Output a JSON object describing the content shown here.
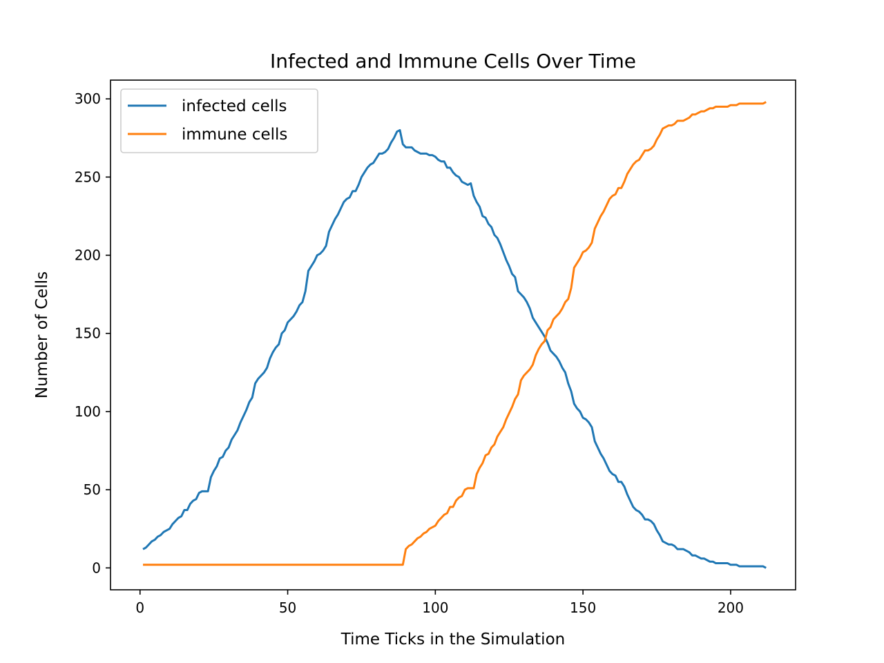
{
  "chart_data": {
    "type": "line",
    "title": "Infected and Immune Cells Over Time",
    "xlabel": "Time Ticks in the Simulation",
    "ylabel": "Number of Cells",
    "xlim": [
      -10,
      222
    ],
    "ylim": [
      -14,
      312
    ],
    "xticks": [
      0,
      50,
      100,
      150,
      200
    ],
    "yticks": [
      0,
      50,
      100,
      150,
      200,
      250,
      300
    ],
    "grid": false,
    "legend_position": "top-left",
    "series": [
      {
        "name": "infected cells",
        "color": "#1f77b4",
        "points": [
          [
            1,
            12
          ],
          [
            2,
            13
          ],
          [
            3,
            15
          ],
          [
            4,
            17
          ],
          [
            5,
            18
          ],
          [
            6,
            20
          ],
          [
            7,
            21
          ],
          [
            8,
            23
          ],
          [
            9,
            24
          ],
          [
            10,
            25
          ],
          [
            11,
            28
          ],
          [
            12,
            30
          ],
          [
            13,
            32
          ],
          [
            14,
            33
          ],
          [
            15,
            37
          ],
          [
            16,
            37
          ],
          [
            17,
            41
          ],
          [
            18,
            43
          ],
          [
            19,
            44
          ],
          [
            20,
            48
          ],
          [
            21,
            49
          ],
          [
            22,
            49
          ],
          [
            23,
            49
          ],
          [
            24,
            58
          ],
          [
            25,
            62
          ],
          [
            26,
            65
          ],
          [
            27,
            70
          ],
          [
            28,
            71
          ],
          [
            29,
            75
          ],
          [
            30,
            77
          ],
          [
            31,
            82
          ],
          [
            32,
            85
          ],
          [
            33,
            88
          ],
          [
            34,
            93
          ],
          [
            35,
            97
          ],
          [
            36,
            101
          ],
          [
            37,
            106
          ],
          [
            38,
            109
          ],
          [
            39,
            118
          ],
          [
            40,
            121
          ],
          [
            41,
            123
          ],
          [
            42,
            125
          ],
          [
            43,
            128
          ],
          [
            44,
            134
          ],
          [
            45,
            138
          ],
          [
            46,
            141
          ],
          [
            47,
            143
          ],
          [
            48,
            150
          ],
          [
            49,
            152
          ],
          [
            50,
            157
          ],
          [
            51,
            159
          ],
          [
            52,
            161
          ],
          [
            53,
            164
          ],
          [
            54,
            168
          ],
          [
            55,
            170
          ],
          [
            56,
            177
          ],
          [
            57,
            190
          ],
          [
            58,
            193
          ],
          [
            59,
            196
          ],
          [
            60,
            200
          ],
          [
            61,
            201
          ],
          [
            62,
            203
          ],
          [
            63,
            206
          ],
          [
            64,
            215
          ],
          [
            65,
            219
          ],
          [
            66,
            223
          ],
          [
            67,
            226
          ],
          [
            68,
            230
          ],
          [
            69,
            234
          ],
          [
            70,
            236
          ],
          [
            71,
            237
          ],
          [
            72,
            241
          ],
          [
            73,
            241
          ],
          [
            74,
            245
          ],
          [
            75,
            250
          ],
          [
            76,
            253
          ],
          [
            77,
            256
          ],
          [
            78,
            258
          ],
          [
            79,
            259
          ],
          [
            80,
            262
          ],
          [
            81,
            265
          ],
          [
            82,
            265
          ],
          [
            83,
            266
          ],
          [
            84,
            268
          ],
          [
            85,
            272
          ],
          [
            86,
            275
          ],
          [
            87,
            279
          ],
          [
            88,
            280
          ],
          [
            89,
            271
          ],
          [
            90,
            269
          ],
          [
            91,
            269
          ],
          [
            92,
            269
          ],
          [
            93,
            267
          ],
          [
            94,
            266
          ],
          [
            95,
            265
          ],
          [
            96,
            265
          ],
          [
            97,
            265
          ],
          [
            98,
            264
          ],
          [
            99,
            264
          ],
          [
            100,
            263
          ],
          [
            101,
            261
          ],
          [
            102,
            260
          ],
          [
            103,
            260
          ],
          [
            104,
            256
          ],
          [
            105,
            256
          ],
          [
            106,
            253
          ],
          [
            107,
            251
          ],
          [
            108,
            250
          ],
          [
            109,
            247
          ],
          [
            110,
            246
          ],
          [
            111,
            245
          ],
          [
            112,
            246
          ],
          [
            113,
            238
          ],
          [
            114,
            234
          ],
          [
            115,
            231
          ],
          [
            116,
            225
          ],
          [
            117,
            224
          ],
          [
            118,
            220
          ],
          [
            119,
            218
          ],
          [
            120,
            213
          ],
          [
            121,
            211
          ],
          [
            122,
            207
          ],
          [
            123,
            202
          ],
          [
            124,
            197
          ],
          [
            125,
            193
          ],
          [
            126,
            188
          ],
          [
            127,
            186
          ],
          [
            128,
            177
          ],
          [
            129,
            175
          ],
          [
            130,
            173
          ],
          [
            131,
            170
          ],
          [
            132,
            166
          ],
          [
            133,
            160
          ],
          [
            134,
            157
          ],
          [
            135,
            154
          ],
          [
            136,
            151
          ],
          [
            137,
            148
          ],
          [
            138,
            144
          ],
          [
            139,
            139
          ],
          [
            140,
            137
          ],
          [
            141,
            135
          ],
          [
            142,
            132
          ],
          [
            143,
            128
          ],
          [
            144,
            125
          ],
          [
            145,
            118
          ],
          [
            146,
            113
          ],
          [
            147,
            105
          ],
          [
            148,
            102
          ],
          [
            149,
            100
          ],
          [
            150,
            96
          ],
          [
            151,
            95
          ],
          [
            152,
            93
          ],
          [
            153,
            90
          ],
          [
            154,
            81
          ],
          [
            155,
            77
          ],
          [
            156,
            73
          ],
          [
            157,
            70
          ],
          [
            158,
            66
          ],
          [
            159,
            62
          ],
          [
            160,
            60
          ],
          [
            161,
            59
          ],
          [
            162,
            55
          ],
          [
            163,
            55
          ],
          [
            164,
            52
          ],
          [
            165,
            47
          ],
          [
            166,
            43
          ],
          [
            167,
            39
          ],
          [
            168,
            37
          ],
          [
            169,
            36
          ],
          [
            170,
            34
          ],
          [
            171,
            31
          ],
          [
            172,
            31
          ],
          [
            173,
            30
          ],
          [
            174,
            28
          ],
          [
            175,
            24
          ],
          [
            176,
            21
          ],
          [
            177,
            17
          ],
          [
            178,
            16
          ],
          [
            179,
            15
          ],
          [
            180,
            15
          ],
          [
            181,
            14
          ],
          [
            182,
            12
          ],
          [
            183,
            12
          ],
          [
            184,
            12
          ],
          [
            185,
            11
          ],
          [
            186,
            10
          ],
          [
            187,
            8
          ],
          [
            188,
            8
          ],
          [
            189,
            7
          ],
          [
            190,
            6
          ],
          [
            191,
            6
          ],
          [
            192,
            5
          ],
          [
            193,
            4
          ],
          [
            194,
            4
          ],
          [
            195,
            3
          ],
          [
            196,
            3
          ],
          [
            197,
            3
          ],
          [
            198,
            3
          ],
          [
            199,
            3
          ],
          [
            200,
            2
          ],
          [
            201,
            2
          ],
          [
            202,
            2
          ],
          [
            203,
            1
          ],
          [
            204,
            1
          ],
          [
            205,
            1
          ],
          [
            206,
            1
          ],
          [
            207,
            1
          ],
          [
            208,
            1
          ],
          [
            209,
            1
          ],
          [
            210,
            1
          ],
          [
            211,
            1
          ],
          [
            212,
            0
          ]
        ]
      },
      {
        "name": "immune cells",
        "color": "#ff7f0e",
        "points": [
          [
            1,
            2
          ],
          [
            89,
            2
          ],
          [
            90,
            12
          ],
          [
            91,
            14
          ],
          [
            92,
            15
          ],
          [
            93,
            17
          ],
          [
            94,
            19
          ],
          [
            95,
            20
          ],
          [
            96,
            22
          ],
          [
            97,
            23
          ],
          [
            98,
            25
          ],
          [
            99,
            26
          ],
          [
            100,
            27
          ],
          [
            101,
            30
          ],
          [
            102,
            32
          ],
          [
            103,
            34
          ],
          [
            104,
            35
          ],
          [
            105,
            39
          ],
          [
            106,
            39
          ],
          [
            107,
            43
          ],
          [
            108,
            45
          ],
          [
            109,
            46
          ],
          [
            110,
            50
          ],
          [
            111,
            51
          ],
          [
            112,
            51
          ],
          [
            113,
            51
          ],
          [
            114,
            60
          ],
          [
            115,
            64
          ],
          [
            116,
            67
          ],
          [
            117,
            72
          ],
          [
            118,
            73
          ],
          [
            119,
            77
          ],
          [
            120,
            79
          ],
          [
            121,
            84
          ],
          [
            122,
            87
          ],
          [
            123,
            90
          ],
          [
            124,
            95
          ],
          [
            125,
            99
          ],
          [
            126,
            103
          ],
          [
            127,
            108
          ],
          [
            128,
            111
          ],
          [
            129,
            120
          ],
          [
            130,
            123
          ],
          [
            131,
            125
          ],
          [
            132,
            127
          ],
          [
            133,
            130
          ],
          [
            134,
            136
          ],
          [
            135,
            140
          ],
          [
            136,
            143
          ],
          [
            137,
            145
          ],
          [
            138,
            152
          ],
          [
            139,
            154
          ],
          [
            140,
            159
          ],
          [
            141,
            161
          ],
          [
            142,
            163
          ],
          [
            143,
            166
          ],
          [
            144,
            170
          ],
          [
            145,
            172
          ],
          [
            146,
            179
          ],
          [
            147,
            192
          ],
          [
            148,
            195
          ],
          [
            149,
            198
          ],
          [
            150,
            202
          ],
          [
            151,
            203
          ],
          [
            152,
            205
          ],
          [
            153,
            208
          ],
          [
            154,
            217
          ],
          [
            155,
            221
          ],
          [
            156,
            225
          ],
          [
            157,
            228
          ],
          [
            158,
            232
          ],
          [
            159,
            236
          ],
          [
            160,
            238
          ],
          [
            161,
            239
          ],
          [
            162,
            243
          ],
          [
            163,
            243
          ],
          [
            164,
            247
          ],
          [
            165,
            252
          ],
          [
            166,
            255
          ],
          [
            167,
            258
          ],
          [
            168,
            260
          ],
          [
            169,
            261
          ],
          [
            170,
            264
          ],
          [
            171,
            267
          ],
          [
            172,
            267
          ],
          [
            173,
            268
          ],
          [
            174,
            270
          ],
          [
            175,
            274
          ],
          [
            176,
            277
          ],
          [
            177,
            281
          ],
          [
            178,
            282
          ],
          [
            179,
            283
          ],
          [
            180,
            283
          ],
          [
            181,
            284
          ],
          [
            182,
            286
          ],
          [
            183,
            286
          ],
          [
            184,
            286
          ],
          [
            185,
            287
          ],
          [
            186,
            288
          ],
          [
            187,
            290
          ],
          [
            188,
            290
          ],
          [
            189,
            291
          ],
          [
            190,
            292
          ],
          [
            191,
            292
          ],
          [
            192,
            293
          ],
          [
            193,
            294
          ],
          [
            194,
            294
          ],
          [
            195,
            295
          ],
          [
            196,
            295
          ],
          [
            197,
            295
          ],
          [
            198,
            295
          ],
          [
            199,
            295
          ],
          [
            200,
            296
          ],
          [
            201,
            296
          ],
          [
            202,
            296
          ],
          [
            203,
            297
          ],
          [
            204,
            297
          ],
          [
            205,
            297
          ],
          [
            206,
            297
          ],
          [
            207,
            297
          ],
          [
            208,
            297
          ],
          [
            209,
            297
          ],
          [
            210,
            297
          ],
          [
            211,
            297
          ],
          [
            212,
            298
          ]
        ]
      }
    ]
  }
}
